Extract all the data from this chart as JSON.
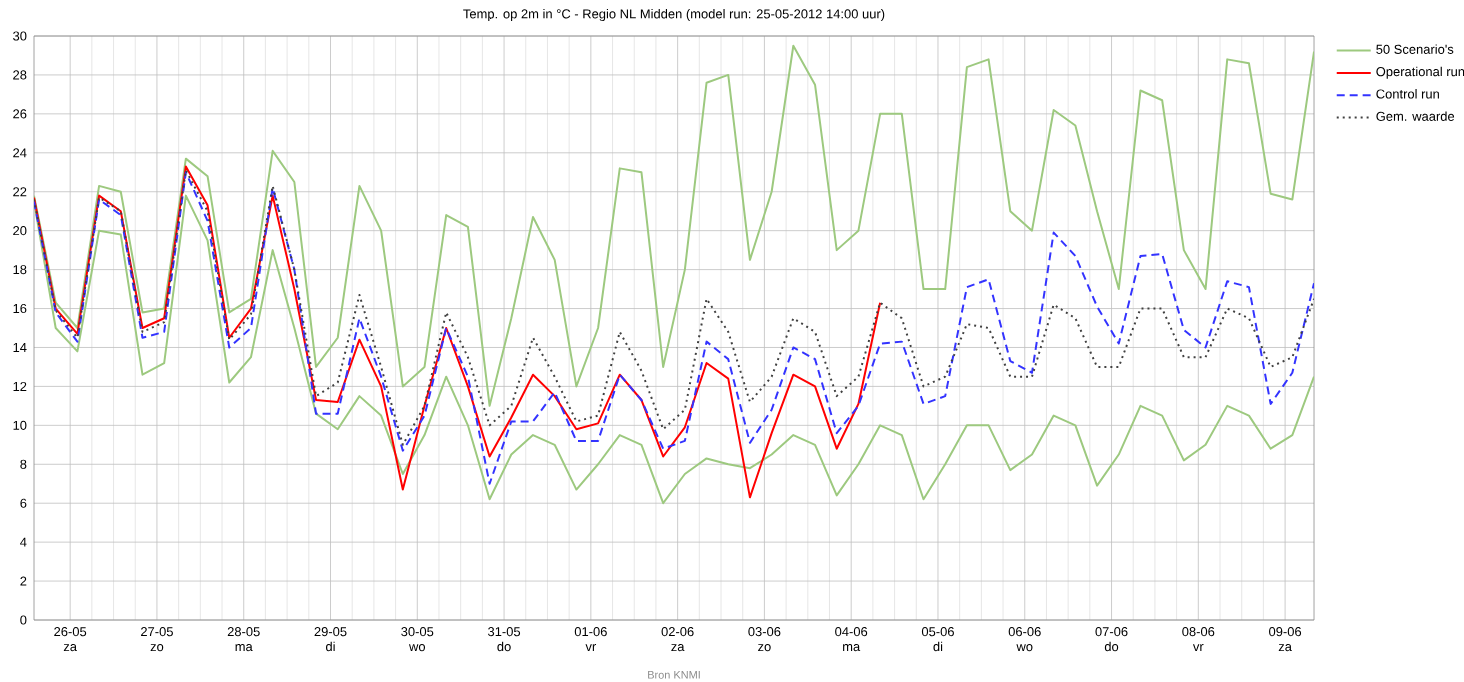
{
  "chart_data": {
    "type": "line",
    "title": "Temp. op 2m in °C - Regio NL Midden (model run: 25-05-2012 14:00 uur)",
    "x": [
      "2012-05-25T14:00",
      "2012-05-25T20:00",
      "2012-05-26T02:00",
      "2012-05-26T08:00",
      "2012-05-26T14:00",
      "2012-05-26T20:00",
      "2012-05-27T02:00",
      "2012-05-27T08:00",
      "2012-05-27T14:00",
      "2012-05-27T20:00",
      "2012-05-28T02:00",
      "2012-05-28T08:00",
      "2012-05-28T14:00",
      "2012-05-28T20:00",
      "2012-05-29T02:00",
      "2012-05-29T08:00",
      "2012-05-29T14:00",
      "2012-05-29T20:00",
      "2012-05-30T02:00",
      "2012-05-30T08:00",
      "2012-05-30T14:00",
      "2012-05-30T20:00",
      "2012-05-31T02:00",
      "2012-05-31T08:00",
      "2012-05-31T14:00",
      "2012-05-31T20:00",
      "2012-06-01T02:00",
      "2012-06-01T08:00",
      "2012-06-01T14:00",
      "2012-06-01T20:00",
      "2012-06-02T02:00",
      "2012-06-02T08:00",
      "2012-06-02T14:00",
      "2012-06-02T20:00",
      "2012-06-03T02:00",
      "2012-06-03T08:00",
      "2012-06-03T14:00",
      "2012-06-03T20:00",
      "2012-06-04T02:00",
      "2012-06-04T08:00",
      "2012-06-04T14:00",
      "2012-06-04T20:00",
      "2012-06-05T02:00",
      "2012-06-05T08:00",
      "2012-06-05T14:00",
      "2012-06-05T20:00",
      "2012-06-06T02:00",
      "2012-06-06T08:00",
      "2012-06-06T14:00",
      "2012-06-06T20:00",
      "2012-06-07T02:00",
      "2012-06-07T08:00",
      "2012-06-07T14:00",
      "2012-06-07T20:00",
      "2012-06-08T02:00",
      "2012-06-08T08:00",
      "2012-06-08T14:00",
      "2012-06-08T20:00",
      "2012-06-09T02:00",
      "2012-06-09T08:00"
    ],
    "xlim": [
      "2012-05-25T14:00",
      "2012-06-09T08:00"
    ],
    "xticks": [
      {
        "value": "2012-05-26",
        "label": "26-05 za"
      },
      {
        "value": "2012-05-27",
        "label": "27-05 zo"
      },
      {
        "value": "2012-05-28",
        "label": "28-05 ma"
      },
      {
        "value": "2012-05-29",
        "label": "29-05 di"
      },
      {
        "value": "2012-05-30",
        "label": "30-05 wo"
      },
      {
        "value": "2012-05-31",
        "label": "31-05 do"
      },
      {
        "value": "2012-06-01",
        "label": "01-06 vr"
      },
      {
        "value": "2012-06-02",
        "label": "02-06 za"
      },
      {
        "value": "2012-06-03",
        "label": "03-06 zo"
      },
      {
        "value": "2012-06-04",
        "label": "04-06 ma"
      },
      {
        "value": "2012-06-05",
        "label": "05-06 di"
      },
      {
        "value": "2012-06-06",
        "label": "06-06 wo"
      },
      {
        "value": "2012-06-07",
        "label": "07-06 do"
      },
      {
        "value": "2012-06-08",
        "label": "08-06 vr"
      },
      {
        "value": "2012-06-09",
        "label": "09-06 za"
      }
    ],
    "ylim": [
      0,
      30
    ],
    "yticks": [
      0,
      2,
      4,
      6,
      8,
      10,
      12,
      14,
      16,
      18,
      20,
      22,
      24,
      26,
      28,
      30
    ],
    "grid": true,
    "legend": "top right",
    "marker": "none",
    "annotations": [
      "Bron KNMI"
    ],
    "series": [
      {
        "name": "50 Scenario's",
        "color": "#9dc97f",
        "line_style": "solid",
        "values": [
          21.8,
          16.3,
          15,
          22.3,
          22,
          15.8,
          16,
          23.7,
          22.8,
          15.8,
          16.5,
          24.1,
          22.5,
          13,
          14.5,
          22.3,
          20,
          12,
          13,
          20.8,
          20.2,
          11,
          15.5,
          20.7,
          18.5,
          12,
          15,
          23.2,
          23,
          13,
          18,
          27.6,
          28,
          18.5,
          22,
          29.5,
          27.5,
          19,
          20,
          26,
          26,
          17,
          17,
          28.4,
          28.8,
          21,
          20,
          26.2,
          25.4,
          21,
          17,
          27.2,
          26.7,
          19,
          17,
          28.8,
          28.6,
          21.9,
          21.6,
          29.2
        ]
      },
      {
        "color": "#9dc97f",
        "line_style": "solid",
        "values": [
          21.5,
          15,
          13.8,
          20,
          19.8,
          12.6,
          13.2,
          21.8,
          19.5,
          12.2,
          13.5,
          19,
          15,
          10.6,
          9.8,
          11.5,
          10.5,
          7.5,
          9.5,
          12.5,
          10,
          6.2,
          8.5,
          9.5,
          9,
          6.7,
          8,
          9.5,
          9,
          6,
          7.5,
          8.3,
          8,
          7.8,
          8.5,
          9.5,
          9,
          6.4,
          8,
          10,
          9.5,
          6.2,
          8,
          10,
          10,
          7.7,
          8.5,
          10.5,
          10,
          6.9,
          8.5,
          11,
          10.5,
          8.2,
          9,
          11,
          10.5,
          8.8,
          9.5,
          12.5
        ]
      },
      {
        "name": "Operational run",
        "color": "#ff0000",
        "line_style": "solid",
        "values": [
          21.7,
          16,
          14.7,
          21.8,
          21,
          15,
          15.5,
          23.3,
          21.3,
          14.5,
          16,
          21.8,
          17,
          11.3,
          11.2,
          14.4,
          12,
          6.7,
          11,
          15,
          12,
          8.4,
          10.4,
          12.6,
          11.5,
          9.8,
          10.1,
          12.6,
          11.3,
          8.4,
          9.9,
          13.2,
          12.4,
          6.3,
          9.6,
          12.6,
          12,
          8.8,
          11.1,
          16.3,
          null,
          null,
          null,
          null,
          null,
          null,
          null,
          null,
          null,
          null,
          null,
          null,
          null,
          null,
          null,
          null,
          null,
          null,
          null,
          null
        ]
      },
      {
        "name": "Control run",
        "color": "#3333ff",
        "line_style": "dashed",
        "values": [
          21.5,
          15.8,
          14.3,
          21.6,
          20.8,
          14.5,
          14.8,
          23,
          20.5,
          14,
          15,
          22.2,
          18,
          10.6,
          10.6,
          15.5,
          12.5,
          8.7,
          10.5,
          15,
          12.5,
          7,
          10.2,
          10.2,
          11.7,
          9.2,
          9.2,
          12.6,
          11.3,
          8.8,
          9.2,
          14.3,
          13.4,
          9.1,
          10.8,
          14,
          13.4,
          9.6,
          11,
          14.2,
          14.3,
          11.1,
          11.5,
          17.1,
          17.5,
          13.3,
          12.7,
          19.9,
          18.7,
          16.1,
          14.2,
          18.7,
          18.8,
          14.9,
          14,
          17.4,
          17.1,
          11.1,
          12.7,
          17.3
        ]
      },
      {
        "name": "Gem. waarde",
        "color": "#404040",
        "line_style": "dotted",
        "values": [
          21.6,
          15.9,
          14.5,
          21.7,
          21,
          14.8,
          15.3,
          23.1,
          21,
          14.4,
          15.7,
          22.3,
          18,
          11.5,
          12.2,
          16.7,
          13,
          9,
          11,
          15.8,
          13.5,
          10,
          11,
          14.5,
          12.5,
          10.2,
          10.5,
          14.8,
          12.8,
          9.8,
          10.8,
          16.5,
          14.8,
          11.2,
          12.5,
          15.5,
          14.8,
          11.5,
          12.5,
          16.3,
          15.5,
          12,
          12.5,
          15.2,
          15,
          12.5,
          12.5,
          16.2,
          15.5,
          13,
          13,
          16,
          16,
          13.5,
          13.5,
          16,
          15.5,
          13,
          13.5,
          16.5
        ]
      }
    ]
  }
}
